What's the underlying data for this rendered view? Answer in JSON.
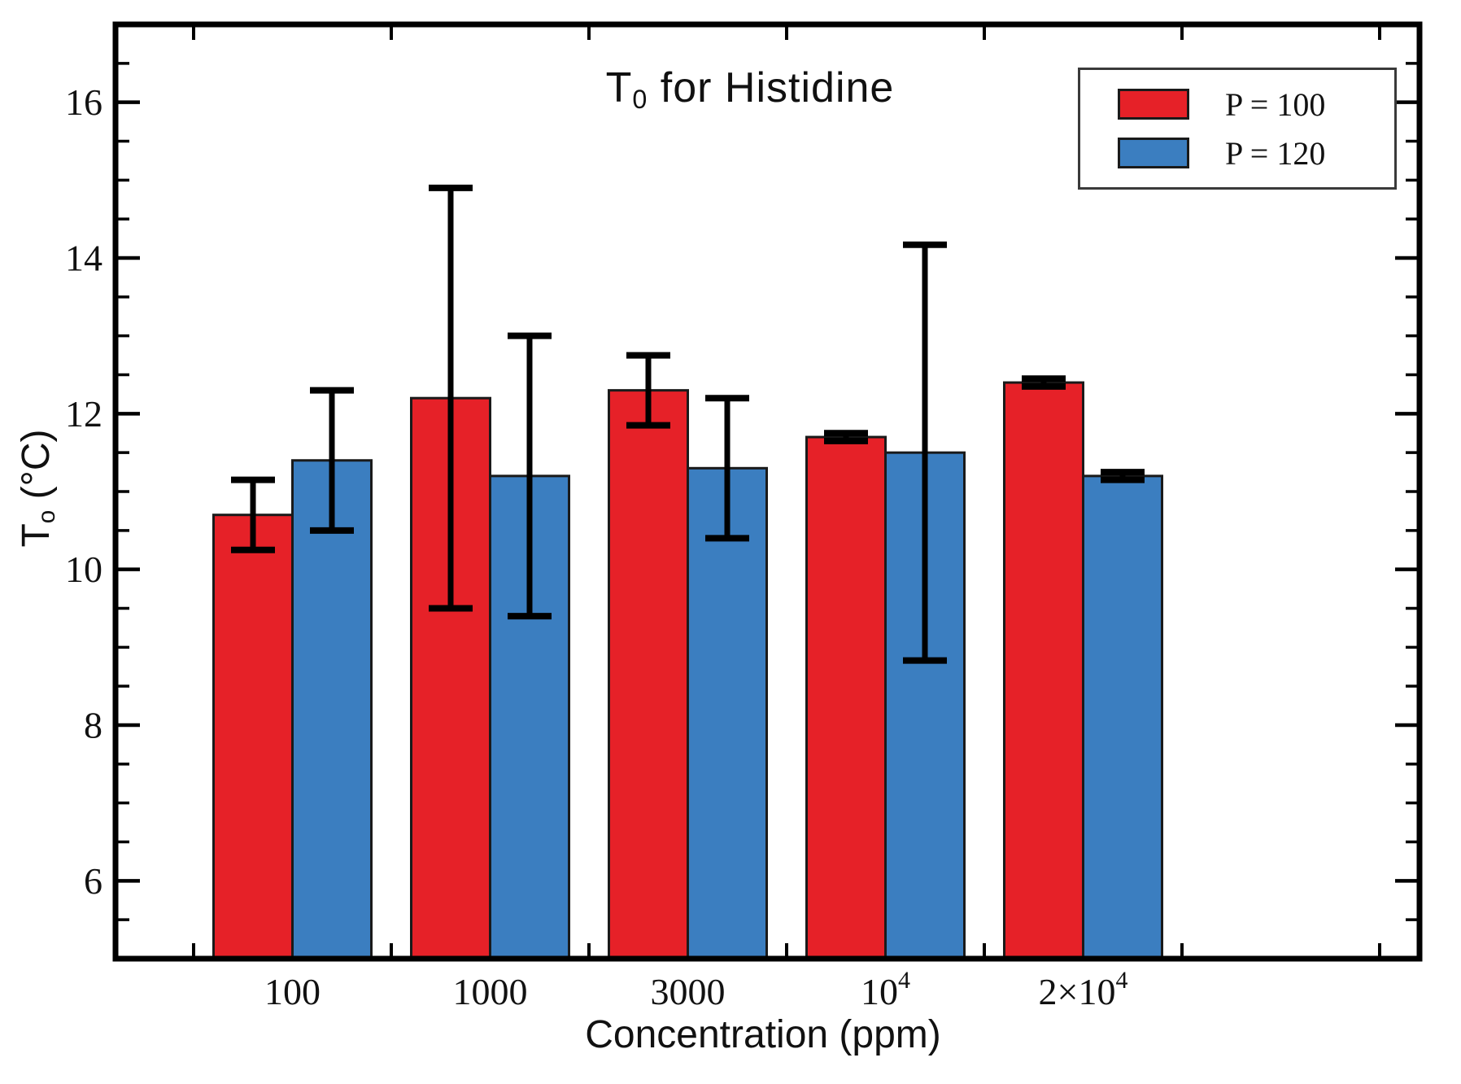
{
  "chart_data": {
    "type": "bar",
    "title": {
      "prefix": "T",
      "sub": "0",
      "suffix": " for Histidine"
    },
    "ylabel": {
      "prefix": "T",
      "sub": "o",
      "suffix": " (°C)"
    },
    "xlabel": "Concentration (ppm)",
    "categories": [
      {
        "text": "100"
      },
      {
        "text": "1000"
      },
      {
        "text": "3000"
      },
      {
        "base": "10",
        "sup": "4"
      },
      {
        "base": "2×10",
        "sup": "4"
      }
    ],
    "series": [
      {
        "name": "P = 100",
        "color": "#e62128",
        "values": [
          10.7,
          12.2,
          12.3,
          11.7,
          12.4
        ],
        "errors": [
          0.45,
          2.7,
          0.45,
          0.05,
          0.05
        ]
      },
      {
        "name": "P = 120",
        "color": "#3b7ec0",
        "values": [
          11.4,
          11.2,
          11.3,
          11.5,
          11.2
        ],
        "errors": [
          0.9,
          1.8,
          0.9,
          2.67,
          0.05
        ]
      }
    ],
    "ylim": [
      5,
      17
    ],
    "yticks": [
      6,
      8,
      10,
      12,
      14,
      16
    ],
    "minor_tick_step": 0.5,
    "grid": false,
    "legend_position": "top-right",
    "bar_edge_color": "#1a1a1a",
    "errorbar_color": "#000000"
  }
}
